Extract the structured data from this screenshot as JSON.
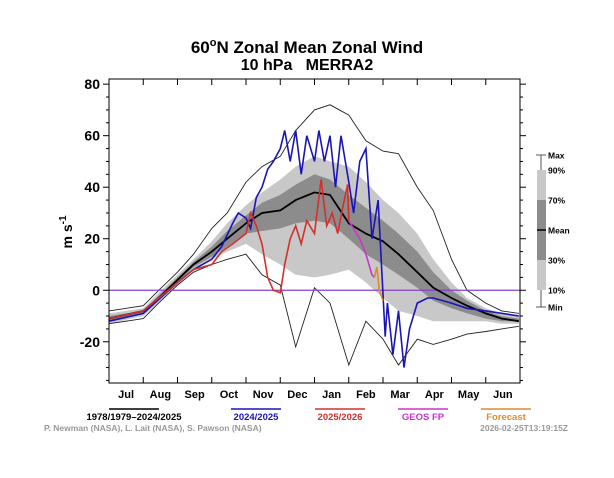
{
  "chart_data": {
    "type": "line",
    "title": "60°N Zonal Mean Zonal Wind",
    "title_main": "60",
    "title_sup": "o",
    "title_rest": "N Zonal Mean Zonal Wind",
    "subtitle": "10 hPa   MERRA2",
    "ylabel": "m s",
    "ylabel_sup": "-1",
    "ylim": [
      -36,
      82
    ],
    "yticks": [
      80,
      60,
      40,
      20,
      0,
      -20
    ],
    "xticks": [
      "Jul",
      "Aug",
      "Sep",
      "Oct",
      "Nov",
      "Dec",
      "Jan",
      "Feb",
      "Mar",
      "Apr",
      "May",
      "Jun"
    ],
    "grid": false,
    "zero_line_color": "#8a3fd1",
    "climatology": {
      "x": [
        "Jul 1",
        "Aug 1",
        "Aug 15",
        "Sep 1",
        "Sep 15",
        "Oct 1",
        "Oct 15",
        "Nov 1",
        "Nov 15",
        "Dec 1",
        "Dec 15",
        "Jan 1",
        "Jan 15",
        "Feb 1",
        "Feb 15",
        "Mar 1",
        "Mar 15",
        "Apr 1",
        "Apr 15",
        "May 1",
        "May 15",
        "Jun 1",
        "Jun 15",
        "Jun 30"
      ],
      "max": [
        -8,
        -6,
        0,
        7,
        14,
        24,
        30,
        42,
        48,
        52,
        62,
        70,
        72,
        68,
        58,
        54,
        53,
        40,
        31,
        12,
        0,
        -5,
        -8,
        -9
      ],
      "p90": [
        -9,
        -7,
        -1,
        6,
        12,
        19,
        26,
        33,
        38,
        43,
        48,
        52,
        50,
        48,
        42,
        35,
        30,
        22,
        12,
        3,
        -3,
        -7,
        -9,
        -10
      ],
      "p70": [
        -10,
        -8,
        -2,
        5,
        11,
        17,
        23,
        29,
        34,
        37,
        41,
        45,
        43,
        37,
        32,
        27,
        22,
        15,
        7,
        0,
        -4,
        -8,
        -10,
        -11
      ],
      "mean": [
        -11,
        -8,
        -3,
        4,
        10,
        15,
        20,
        26,
        30,
        31,
        35,
        38,
        37,
        26,
        22,
        19,
        14,
        7,
        1,
        -3,
        -6,
        -9,
        -11,
        -12
      ],
      "p30": [
        -12,
        -9,
        -4,
        3,
        9,
        13,
        17,
        22,
        23,
        24,
        26,
        27,
        26,
        20,
        14,
        10,
        6,
        1,
        -4,
        -7,
        -9,
        -11,
        -12,
        -12
      ],
      "p10": [
        -13,
        -10,
        -5,
        2,
        8,
        12,
        15,
        18,
        14,
        10,
        6,
        5,
        6,
        8,
        3,
        -3,
        -8,
        -10,
        -12,
        -12,
        -12,
        -12,
        -13,
        -13
      ],
      "min": [
        -13,
        -11,
        -5,
        2,
        7,
        10,
        12,
        14,
        6,
        2,
        -22,
        1,
        -5,
        -29,
        -12,
        -19,
        -29,
        -19,
        -21,
        -19,
        -17,
        -16,
        -15,
        -14
      ]
    },
    "legend_placement": "bottom",
    "box_legend": [
      "Max",
      "90%",
      "70%",
      "Mean",
      "30%",
      "10%",
      "Min"
    ],
    "series": [
      {
        "name": "1978/1979–2024/2025",
        "color": "#000000",
        "role": "mean"
      },
      {
        "name": "2024/2025",
        "color": "#1a14b8",
        "x": [
          "Jul 1",
          "Aug 1",
          "Sep 1",
          "Sep 15",
          "Oct 1",
          "Oct 10",
          "Oct 20",
          "Oct 25",
          "Nov 1",
          "Nov 5",
          "Nov 10",
          "Nov 15",
          "Nov 20",
          "Nov 25",
          "Dec 1",
          "Dec 5",
          "Dec 10",
          "Dec 15",
          "Dec 20",
          "Dec 25",
          "Jan 1",
          "Jan 5",
          "Jan 10",
          "Jan 15",
          "Jan 20",
          "Jan 25",
          "Feb 1",
          "Feb 5",
          "Feb 10",
          "Feb 15",
          "Feb 20",
          "Feb 25",
          "Mar 3",
          "Mar 5",
          "Mar 10",
          "Mar 15",
          "Mar 20",
          "Mar 25",
          "Apr 1",
          "Apr 10",
          "Apr 15",
          "May 1",
          "May 15",
          "Jun 1",
          "Jun 30"
        ],
        "y": [
          -12,
          -9,
          3,
          8,
          12,
          17,
          26,
          30,
          28,
          24,
          36,
          40,
          47,
          50,
          55,
          62,
          50,
          62,
          45,
          60,
          50,
          62,
          50,
          60,
          40,
          60,
          42,
          30,
          50,
          55,
          20,
          35,
          -18,
          -5,
          -25,
          -8,
          -30,
          -15,
          -5,
          -3,
          -3,
          -5,
          -7,
          -8,
          -10
        ]
      },
      {
        "name": "2025/2026",
        "color": "#d0312d",
        "x": [
          "Jul 1",
          "Aug 1",
          "Sep 1",
          "Sep 15",
          "Oct 1",
          "Oct 10",
          "Oct 20",
          "Nov 1",
          "Nov 5",
          "Nov 10",
          "Nov 15",
          "Nov 20",
          "Nov 25",
          "Dec 1",
          "Dec 5",
          "Dec 10",
          "Dec 15",
          "Dec 20",
          "Dec 25",
          "Jan 1",
          "Jan 7",
          "Jan 12",
          "Jan 17",
          "Jan 22",
          "Jan 27",
          "Jan 31",
          "Feb 1"
        ],
        "y": [
          -11,
          -8,
          3,
          8,
          10,
          15,
          18,
          22,
          30,
          25,
          18,
          5,
          0,
          -1,
          10,
          20,
          25,
          18,
          27,
          22,
          43,
          25,
          30,
          22,
          33,
          41,
          27
        ]
      },
      {
        "name": "GEOS FP",
        "color": "#cc33cc",
        "x": [
          "Feb 1",
          "Feb 10",
          "Feb 15",
          "Feb 20",
          "Feb 22"
        ],
        "y": [
          27,
          20,
          14,
          6,
          5
        ]
      },
      {
        "name": "Forecast",
        "color": "#e08a2c",
        "x": [
          "Feb 22",
          "Feb 24",
          "Feb 26",
          "Mar 1"
        ],
        "y": [
          5,
          9,
          0,
          -4
        ]
      }
    ]
  },
  "credits": "P. Newman (NASA), L. Lait (NASA), S. Pawson (NASA)",
  "timestamp": "2026-02-25T13:19:15Z"
}
